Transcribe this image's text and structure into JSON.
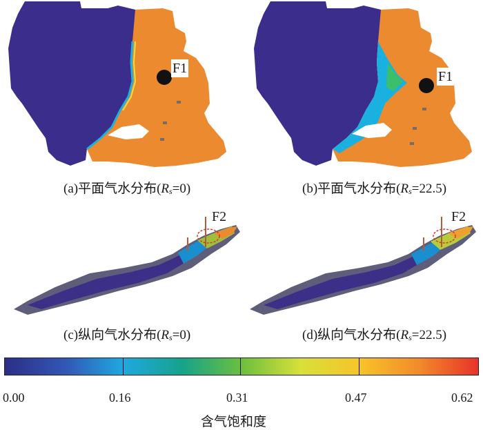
{
  "panels": {
    "a": {
      "caption_prefix": "(a)平面气水分布(",
      "var": "R",
      "sub": "s",
      "caption_suffix": "=0)",
      "well": "F1"
    },
    "b": {
      "caption_prefix": "(b)平面气水分布(",
      "var": "R",
      "sub": "s",
      "caption_suffix": "=22.5)",
      "well": "F1"
    },
    "c": {
      "caption_prefix": "(c)纵向气水分布(",
      "var": "R",
      "sub": "s",
      "caption_suffix": "=0)",
      "well": "F2"
    },
    "d": {
      "caption_prefix": "(d)纵向气水分布(",
      "var": "R",
      "sub": "s",
      "caption_suffix": "=22.5)",
      "well": "F2"
    }
  },
  "colorbar": {
    "title": "含气饱和度",
    "ticks": [
      "0.00",
      "0.16",
      "0.31",
      "0.47",
      "0.62"
    ],
    "range": [
      0.0,
      0.62
    ],
    "colors": [
      "#2b2f86",
      "#3355b5",
      "#1ea8e0",
      "#16a38a",
      "#6cbf3c",
      "#d8e03a",
      "#f7c428",
      "#f28a2a",
      "#e8332a"
    ]
  },
  "colors": {
    "water": "#3a2d8c",
    "gas": "#ec8a30",
    "transition": "#1ab0e0"
  }
}
